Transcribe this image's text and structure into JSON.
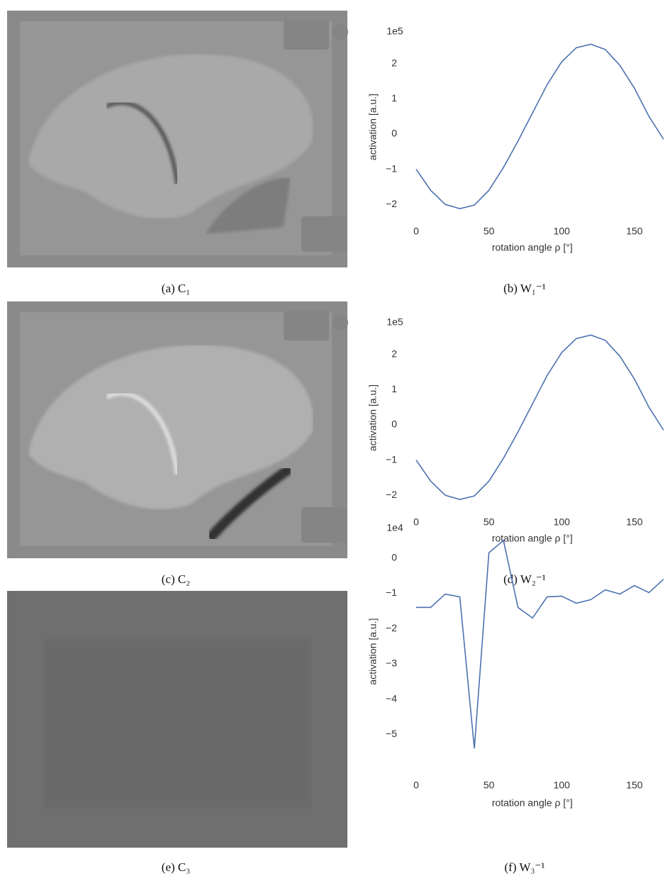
{
  "captions": [
    "(a) C₁",
    "(b) W₁⁻¹",
    "(c) C₂",
    "(d) W₂⁻¹",
    "(e) C₃",
    "(f) W₃⁻¹"
  ],
  "chart_data": [
    {
      "type": "line",
      "ylabel": "activation [a.u.]",
      "xlabel": "rotation angle ρ [°]",
      "offset_text": "1e5",
      "x": [
        0,
        10,
        20,
        30,
        40,
        50,
        60,
        70,
        80,
        90,
        100,
        110,
        120,
        130,
        140,
        150,
        160,
        170
      ],
      "values": [
        -1.0,
        -1.6,
        -2.0,
        -2.12,
        -2.02,
        -1.6,
        -0.95,
        -0.2,
        0.6,
        1.4,
        2.05,
        2.45,
        2.55,
        2.4,
        1.95,
        1.3,
        0.5,
        -0.15
      ],
      "color": "#4c72b0",
      "xlim": [
        -7,
        171
      ],
      "ylim": [
        -2.5,
        2.9
      ],
      "xticks": [
        0,
        50,
        100,
        150
      ],
      "yticks": [
        {
          "value": -2,
          "label": "−2"
        },
        {
          "value": -1,
          "label": "−1"
        },
        0,
        1,
        2
      ],
      "grid": false
    },
    {
      "type": "line",
      "ylabel": "activation [a.u.]",
      "xlabel": "rotation angle ρ [°]",
      "offset_text": "1e5",
      "x": [
        0,
        10,
        20,
        30,
        40,
        50,
        60,
        70,
        80,
        90,
        100,
        110,
        120,
        130,
        140,
        150,
        160,
        170
      ],
      "values": [
        -1.0,
        -1.6,
        -2.0,
        -2.12,
        -2.02,
        -1.6,
        -0.95,
        -0.2,
        0.6,
        1.4,
        2.05,
        2.45,
        2.55,
        2.4,
        1.95,
        1.3,
        0.5,
        -0.15
      ],
      "color": "#4c72b0",
      "xlim": [
        -7,
        171
      ],
      "ylim": [
        -2.5,
        2.9
      ],
      "xticks": [
        0,
        50,
        100,
        150
      ],
      "yticks": [
        {
          "value": -2,
          "label": "−2"
        },
        {
          "value": -1,
          "label": "−1"
        },
        0,
        1,
        2
      ],
      "grid": false
    },
    {
      "type": "line",
      "ylabel": "activation [a.u.]",
      "xlabel": "rotation angle ρ [°]",
      "offset_text": "1e4",
      "x": [
        0,
        10,
        20,
        30,
        40,
        50,
        60,
        70,
        80,
        90,
        100,
        110,
        120,
        130,
        140,
        150,
        160,
        170
      ],
      "values": [
        -1.4,
        -1.4,
        -1.02,
        -1.1,
        -5.4,
        0.15,
        0.5,
        -1.4,
        -1.7,
        -1.1,
        -1.08,
        -1.28,
        -1.18,
        -0.9,
        -1.02,
        -0.78,
        -0.98,
        -0.6
      ],
      "color": "#4c72b0",
      "xlim": [
        -7,
        171
      ],
      "ylim": [
        -6.1,
        0.8
      ],
      "xticks": [
        0,
        50,
        100,
        150
      ],
      "yticks": [
        {
          "value": -5,
          "label": "−5"
        },
        {
          "value": -4,
          "label": "−4"
        },
        {
          "value": -3,
          "label": "−3"
        },
        {
          "value": -2,
          "label": "−2"
        },
        {
          "value": -1,
          "label": "−1"
        },
        0
      ],
      "grid": false
    }
  ]
}
